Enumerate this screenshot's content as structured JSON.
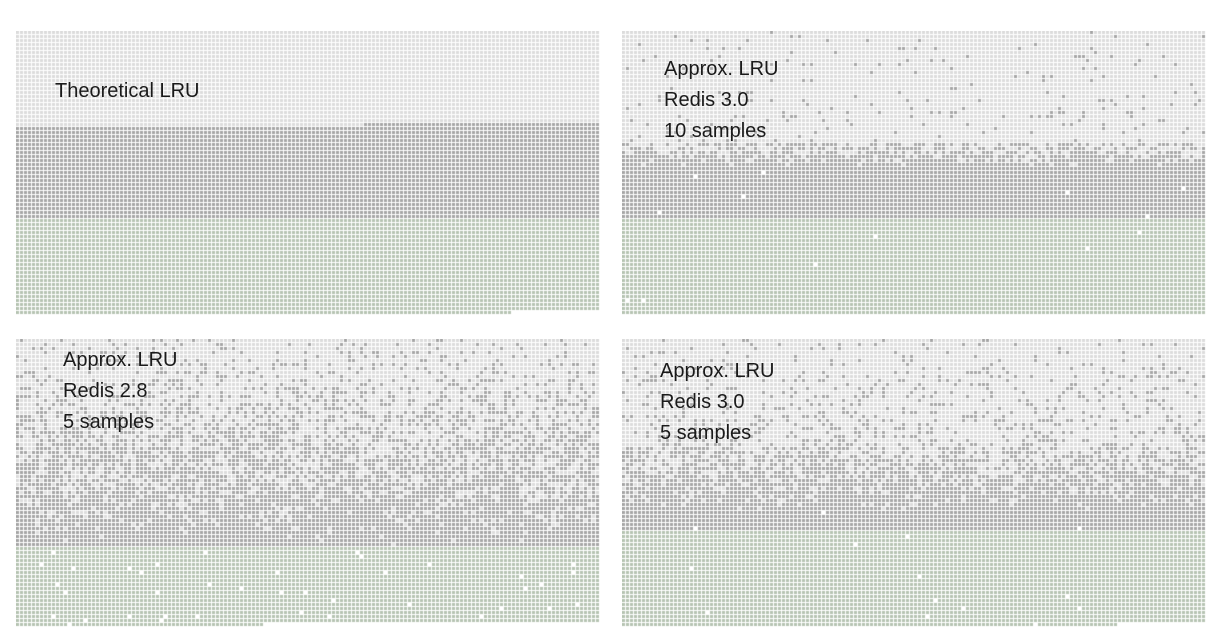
{
  "panels": [
    {
      "id": "theoretical-lru",
      "label_lines": [
        "Theoretical LRU"
      ],
      "mode": "theoretical"
    },
    {
      "id": "approx-lru-redis-3-0-10-samples",
      "label_lines": [
        "Approx. LRU",
        "Redis 3.0",
        "10 samples"
      ],
      "mode": "approx"
    },
    {
      "id": "approx-lru-redis-2-8-5-samples",
      "label_lines": [
        "Approx. LRU",
        "Redis 2.8",
        "5 samples"
      ],
      "mode": "approx"
    },
    {
      "id": "approx-lru-redis-3-0-5-samples",
      "label_lines": [
        "Approx. LRU",
        "Redis 3.0",
        "5 samples"
      ],
      "mode": "approx"
    }
  ],
  "colors": {
    "evicted": "#dcdcdc",
    "old_keys": "#a6a6a6",
    "new_keys": "#b6c4b2",
    "grid": "#ffffff"
  }
}
